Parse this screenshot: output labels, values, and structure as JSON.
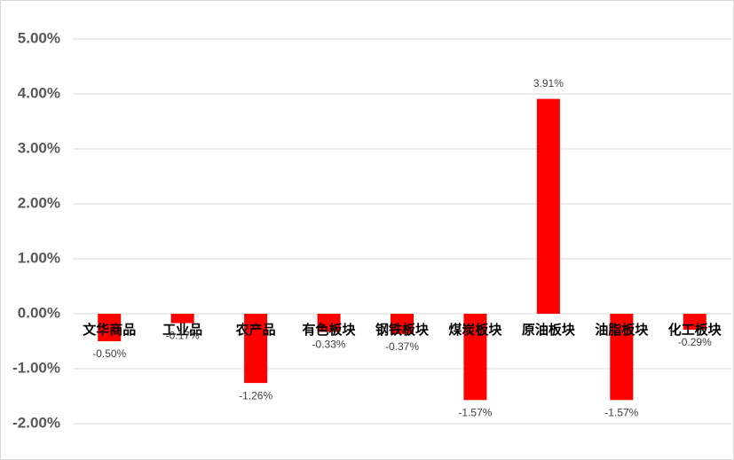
{
  "chart_data": {
    "type": "bar",
    "categories": [
      "文华商品",
      "工业品",
      "农产品",
      "有色板块",
      "钢铁板块",
      "煤炭板块",
      "原油板块",
      "油脂板块",
      "化工板块"
    ],
    "values": [
      -0.5,
      -0.17,
      -1.26,
      -0.33,
      -0.37,
      -1.57,
      3.91,
      -1.57,
      -0.29
    ],
    "value_labels": [
      "-0.50%",
      "-0.17%",
      "-1.26%",
      "-0.33%",
      "-0.37%",
      "-1.57%",
      "3.91%",
      "-1.57%",
      "-0.29%"
    ],
    "color": "#ff0000",
    "ylim": [
      -2,
      5
    ],
    "yticks": [
      {
        "value": -2,
        "label": "-2.00%"
      },
      {
        "value": -1,
        "label": "-1.00%"
      },
      {
        "value": 0,
        "label": "0.00%"
      },
      {
        "value": 1,
        "label": "1.00%"
      },
      {
        "value": 2,
        "label": "2.00%"
      },
      {
        "value": 3,
        "label": "3.00%"
      },
      {
        "value": 4,
        "label": "4.00%"
      },
      {
        "value": 5,
        "label": "5.00%"
      }
    ],
    "grid": true
  }
}
